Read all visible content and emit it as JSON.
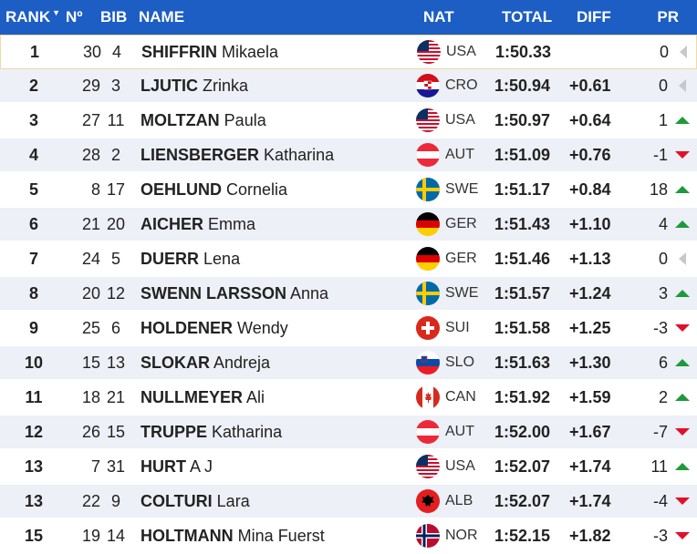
{
  "header": {
    "rank": "RANK",
    "no": "Nº",
    "bib": "BIB",
    "name": "NAME",
    "nat": "NAT",
    "total": "TOTAL",
    "diff": "DIFF",
    "pr": "PR"
  },
  "rows": [
    {
      "rank": "1",
      "no": "30",
      "bib": "4",
      "surname": "SHIFFRIN",
      "given": "Mikaela",
      "nat": "USA",
      "flag": "usa-flag-icon",
      "total": "1:50.33",
      "diff": "",
      "pr": "0",
      "trend": "same"
    },
    {
      "rank": "2",
      "no": "29",
      "bib": "3",
      "surname": "LJUTIC",
      "given": "Zrinka",
      "nat": "CRO",
      "flag": "cro-flag-icon",
      "total": "1:50.94",
      "diff": "+0.61",
      "pr": "0",
      "trend": "same"
    },
    {
      "rank": "3",
      "no": "27",
      "bib": "11",
      "surname": "MOLTZAN",
      "given": "Paula",
      "nat": "USA",
      "flag": "usa-flag-icon",
      "total": "1:50.97",
      "diff": "+0.64",
      "pr": "1",
      "trend": "up"
    },
    {
      "rank": "4",
      "no": "28",
      "bib": "2",
      "surname": "LIENSBERGER",
      "given": "Katharina",
      "nat": "AUT",
      "flag": "aut-flag-icon",
      "total": "1:51.09",
      "diff": "+0.76",
      "pr": "-1",
      "trend": "down"
    },
    {
      "rank": "5",
      "no": "8",
      "bib": "17",
      "surname": "OEHLUND",
      "given": "Cornelia",
      "nat": "SWE",
      "flag": "swe-flag-icon",
      "total": "1:51.17",
      "diff": "+0.84",
      "pr": "18",
      "trend": "up"
    },
    {
      "rank": "6",
      "no": "21",
      "bib": "20",
      "surname": "AICHER",
      "given": "Emma",
      "nat": "GER",
      "flag": "ger-flag-icon",
      "total": "1:51.43",
      "diff": "+1.10",
      "pr": "4",
      "trend": "up"
    },
    {
      "rank": "7",
      "no": "24",
      "bib": "5",
      "surname": "DUERR",
      "given": "Lena",
      "nat": "GER",
      "flag": "ger-flag-icon",
      "total": "1:51.46",
      "diff": "+1.13",
      "pr": "0",
      "trend": "same"
    },
    {
      "rank": "8",
      "no": "20",
      "bib": "12",
      "surname": "SWENN LARSSON",
      "given": "Anna",
      "nat": "SWE",
      "flag": "swe-flag-icon",
      "total": "1:51.57",
      "diff": "+1.24",
      "pr": "3",
      "trend": "up"
    },
    {
      "rank": "9",
      "no": "25",
      "bib": "6",
      "surname": "HOLDENER",
      "given": "Wendy",
      "nat": "SUI",
      "flag": "sui-flag-icon",
      "total": "1:51.58",
      "diff": "+1.25",
      "pr": "-3",
      "trend": "down"
    },
    {
      "rank": "10",
      "no": "15",
      "bib": "13",
      "surname": "SLOKAR",
      "given": "Andreja",
      "nat": "SLO",
      "flag": "slo-flag-icon",
      "total": "1:51.63",
      "diff": "+1.30",
      "pr": "6",
      "trend": "up"
    },
    {
      "rank": "11",
      "no": "18",
      "bib": "21",
      "surname": "NULLMEYER",
      "given": "Ali",
      "nat": "CAN",
      "flag": "can-flag-icon",
      "total": "1:51.92",
      "diff": "+1.59",
      "pr": "2",
      "trend": "up"
    },
    {
      "rank": "12",
      "no": "26",
      "bib": "15",
      "surname": "TRUPPE",
      "given": "Katharina",
      "nat": "AUT",
      "flag": "aut-flag-icon",
      "total": "1:52.00",
      "diff": "+1.67",
      "pr": "-7",
      "trend": "down"
    },
    {
      "rank": "13",
      "no": "7",
      "bib": "31",
      "surname": "HURT",
      "given": "A J",
      "nat": "USA",
      "flag": "usa-flag-icon",
      "total": "1:52.07",
      "diff": "+1.74",
      "pr": "11",
      "trend": "up"
    },
    {
      "rank": "13",
      "no": "22",
      "bib": "9",
      "surname": "COLTURI",
      "given": "Lara",
      "nat": "ALB",
      "flag": "alb-flag-icon",
      "total": "1:52.07",
      "diff": "+1.74",
      "pr": "-4",
      "trend": "down"
    },
    {
      "rank": "15",
      "no": "19",
      "bib": "14",
      "surname": "HOLTMANN",
      "given": "Mina Fuerst",
      "nat": "NOR",
      "flag": "nor-flag-icon",
      "total": "1:52.15",
      "diff": "+1.82",
      "pr": "-3",
      "trend": "down"
    }
  ],
  "colors": {
    "header_bg": "#1d5ec4",
    "row_alt_bg": "#edf0f6",
    "up": "#1f9a3a",
    "down": "#e0102a",
    "same": "#c8c8c8"
  }
}
